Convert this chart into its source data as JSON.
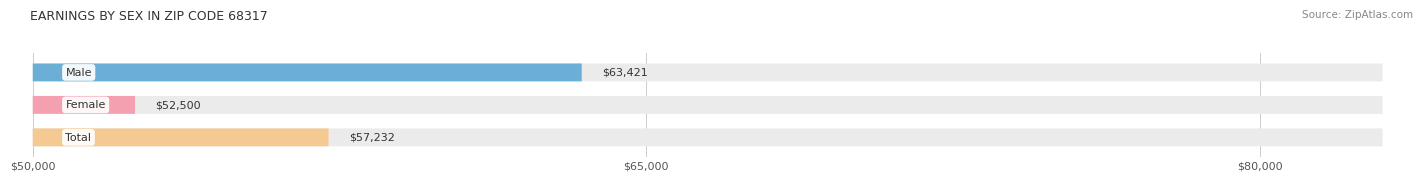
{
  "title": "EARNINGS BY SEX IN ZIP CODE 68317",
  "source": "Source: ZipAtlas.com",
  "categories": [
    "Male",
    "Female",
    "Total"
  ],
  "values": [
    63421,
    52500,
    57232
  ],
  "bar_colors": [
    "#6BAED6",
    "#F4A0B0",
    "#F5C992"
  ],
  "bar_bg_color": "#EBEBEB",
  "value_labels": [
    "$63,421",
    "$52,500",
    "$57,232"
  ],
  "x_min": 50000,
  "x_max": 83000,
  "x_ticks": [
    50000,
    65000,
    80000
  ],
  "x_tick_labels": [
    "$50,000",
    "$65,000",
    "$80,000"
  ],
  "title_fontsize": 9,
  "label_fontsize": 8,
  "tick_fontsize": 8,
  "source_fontsize": 7.5,
  "bar_height": 0.55,
  "background_color": "#FFFFFF"
}
